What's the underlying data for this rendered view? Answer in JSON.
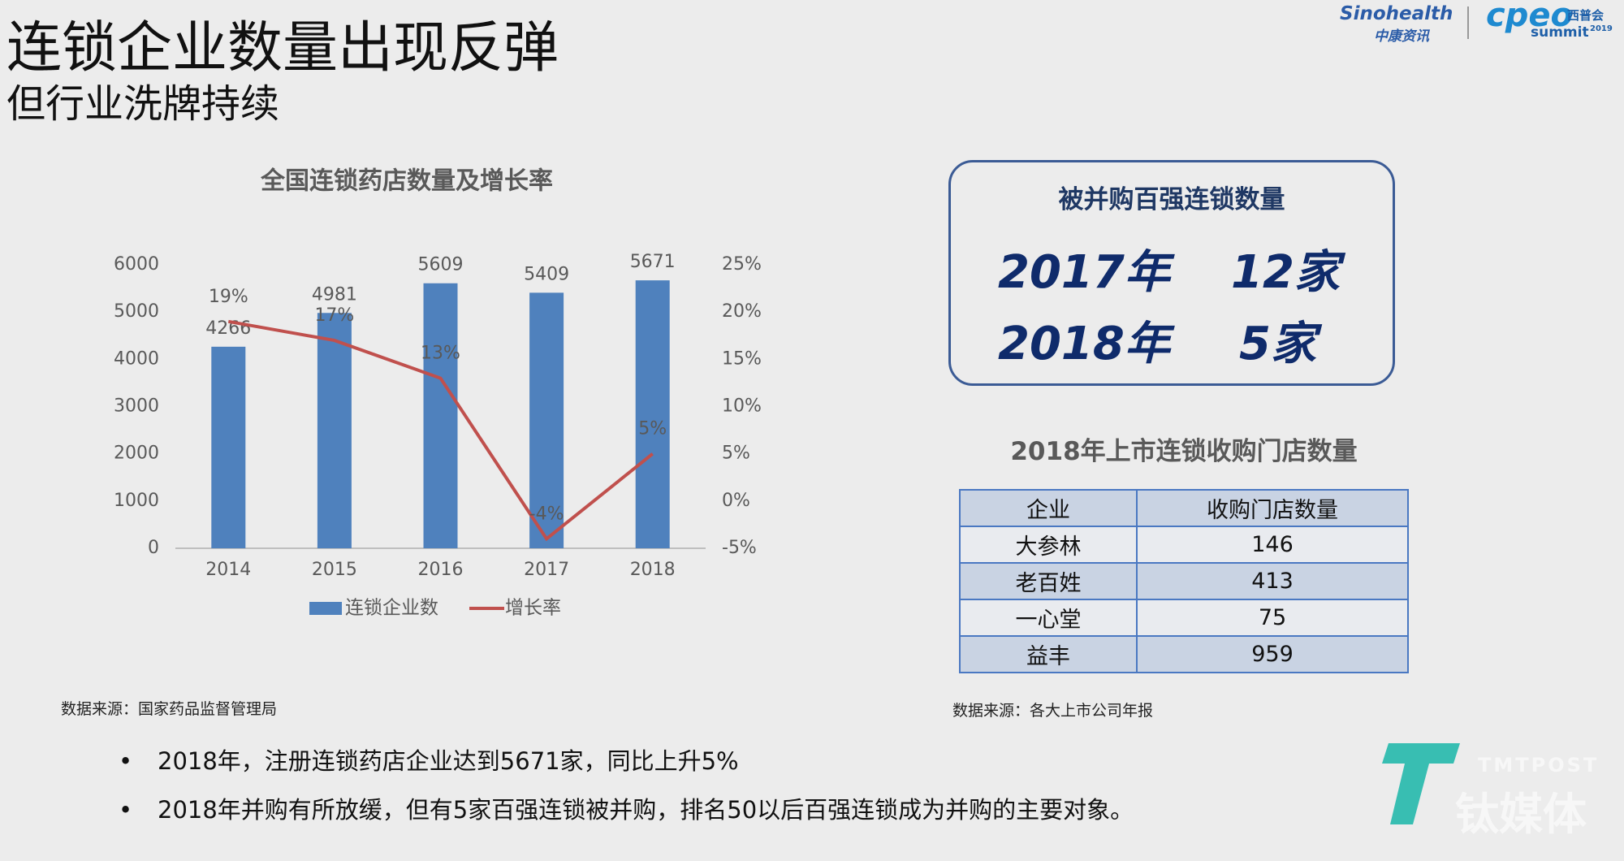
{
  "header": {
    "title": "连锁企业数量出现反弹",
    "subtitle": "但行业洗牌持续"
  },
  "logos": {
    "sinohealth": "Sinohealth",
    "sinohealth_cn": "中康资讯",
    "cpeo": "cpeo",
    "cpeo_cn": "西普会",
    "summit": "summit",
    "summit_year": "2019",
    "watermark": "TMTPOST",
    "watermark_cn": "钛媒体"
  },
  "chart_data": {
    "type": "bar",
    "title": "全国连锁药店数量及增长率",
    "categories": [
      "2014",
      "2015",
      "2016",
      "2017",
      "2018"
    ],
    "series": [
      {
        "name": "连锁企业数",
        "color": "#4f81bd",
        "values": [
          4266,
          4981,
          5609,
          5409,
          5671
        ]
      },
      {
        "name": "增长率",
        "type": "line",
        "axis": "y2",
        "color": "#c0504d",
        "values": [
          19,
          17,
          13,
          -4,
          5
        ],
        "value_labels": [
          "19%",
          "17%",
          "13%",
          "-4%",
          "5%"
        ]
      }
    ],
    "ylim": [
      0,
      6000
    ],
    "yticks": [
      0,
      1000,
      2000,
      3000,
      4000,
      5000,
      6000
    ],
    "y2lim": [
      -5,
      25
    ],
    "y2ticks": [
      {
        "value": -5,
        "label": "-5%"
      },
      {
        "value": 0,
        "label": "0%"
      },
      {
        "value": 5,
        "label": "5%"
      },
      {
        "value": 10,
        "label": "10%"
      },
      {
        "value": 15,
        "label": "15%"
      },
      {
        "value": 20,
        "label": "20%"
      },
      {
        "value": 25,
        "label": "25%"
      }
    ],
    "grid": false,
    "legend": "bottom"
  },
  "chart_source": "数据来源：国家药品监督管理局",
  "acquired_box": {
    "title": "被并购百强连锁数量",
    "rows": [
      [
        "2017年",
        "12家"
      ],
      [
        "2018年",
        "5家"
      ]
    ]
  },
  "table": {
    "title": "2018年上市连锁收购门店数量",
    "header": [
      "企业",
      "收购门店数量"
    ],
    "rows": [
      [
        "大参林",
        146
      ],
      [
        "老百姓",
        413
      ],
      [
        "一心堂",
        75
      ],
      [
        "益丰",
        959
      ]
    ]
  },
  "table_source": "数据来源：各大上市公司年报",
  "bullets": [
    "2018年，注册连锁药店企业达到5671家，同比上升5%",
    "2018年并购有所放缓，但有5家百强连锁被并购，排名50以后百强连锁成为并购的主要对象。"
  ]
}
